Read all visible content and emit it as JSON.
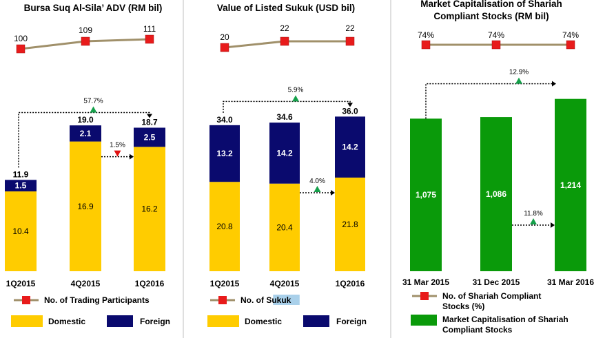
{
  "colors": {
    "domestic": "#FFCC00",
    "foreign": "#0A0A6E",
    "market_cap": "#0A9A0A",
    "line": "#A0906A",
    "marker": "#E81B1B",
    "up_arrow": "#15A04A",
    "down_arrow": "#E01010",
    "divider": "#BFBFBF",
    "highlight": "#A9D0EA"
  },
  "chart_data": [
    {
      "type": "bar",
      "title": "Bursa Suq Al-Sila’ ADV (RM bil)",
      "categories": [
        "1Q2015",
        "4Q2015",
        "1Q2016"
      ],
      "stacked": true,
      "series": [
        {
          "name": "Domestic",
          "values": [
            10.4,
            16.9,
            16.2
          ],
          "labels": [
            "10.4",
            "16.9",
            "16.2"
          ]
        },
        {
          "name": "Foreign",
          "values": [
            1.5,
            2.1,
            2.5
          ],
          "labels": [
            "1.5",
            "2.1",
            "2.5"
          ]
        }
      ],
      "totals": [
        "11.9",
        "19.0",
        "18.7"
      ],
      "line_series": {
        "name": "No. of Trading Participants",
        "values": [
          100,
          109,
          111
        ],
        "labels": [
          "100",
          "109",
          "111"
        ]
      },
      "annotations": [
        {
          "text": "57.7%",
          "direction": "up",
          "from": "1Q2015",
          "to": "1Q2016",
          "ref": "total"
        },
        {
          "text": "1.5%",
          "direction": "down",
          "from": "4Q2015",
          "to": "1Q2016",
          "ref": "domestic"
        }
      ],
      "legend": [
        "No. of Trading Participants",
        "Domestic",
        "Foreign"
      ],
      "legend_highlight": "",
      "ylim": [
        0,
        22
      ]
    },
    {
      "type": "bar",
      "title": "Value of Listed Sukuk (USD bil)",
      "categories": [
        "1Q2015",
        "4Q2015",
        "1Q2016"
      ],
      "stacked": true,
      "series": [
        {
          "name": "Domestic",
          "values": [
            20.8,
            20.4,
            21.8
          ],
          "labels": [
            "20.8",
            "20.4",
            "21.8"
          ]
        },
        {
          "name": "Foreign",
          "values": [
            13.2,
            14.2,
            14.2
          ],
          "labels": [
            "13.2",
            "14.2",
            "14.2"
          ]
        }
      ],
      "totals": [
        "34.0",
        "34.6",
        "36.0"
      ],
      "line_series": {
        "name": "No. of Sukuk",
        "values": [
          20,
          22,
          22
        ],
        "labels": [
          "20",
          "22",
          "22"
        ]
      },
      "annotations": [
        {
          "text": "5.9%",
          "direction": "up",
          "from": "1Q2015",
          "to": "1Q2016",
          "ref": "total"
        },
        {
          "text": "4.0%",
          "direction": "up",
          "from": "4Q2015",
          "to": "1Q2016",
          "ref": "domestic"
        }
      ],
      "legend": [
        "No. of Sukuk",
        "Domestic",
        "Foreign"
      ],
      "legend_highlight": "Sukuk",
      "ylim": [
        0,
        40
      ]
    },
    {
      "type": "bar",
      "title": "Market Capitalisation of Shariah Compliant Stocks (RM bil)",
      "categories": [
        "31 Mar 2015",
        "31 Dec 2015",
        "31 Mar 2016"
      ],
      "stacked": false,
      "series": [
        {
          "name": "Market Capitalisation of Shariah Compliant Stocks",
          "values": [
            1075,
            1086,
            1214
          ],
          "labels": [
            "1,075",
            "1,086",
            "1,214"
          ]
        }
      ],
      "totals": [],
      "line_series": {
        "name": "No. of Shariah Compliant Stocks (%)",
        "values": [
          74,
          74,
          74
        ],
        "labels": [
          "74%",
          "74%",
          "74%"
        ]
      },
      "annotations": [
        {
          "text": "12.9%",
          "direction": "up",
          "from": "31 Mar 2015",
          "to": "31 Mar 2016",
          "ref": "total"
        },
        {
          "text": "11.8%",
          "direction": "up",
          "from": "31 Dec 2015",
          "to": "31 Mar 2016",
          "ref": "mid"
        }
      ],
      "legend": [
        "No. of Shariah Compliant Stocks (%)",
        "Market Capitalisation of Shariah Compliant Stocks"
      ],
      "legend_highlight": "",
      "ylim": [
        0,
        1400
      ]
    }
  ]
}
